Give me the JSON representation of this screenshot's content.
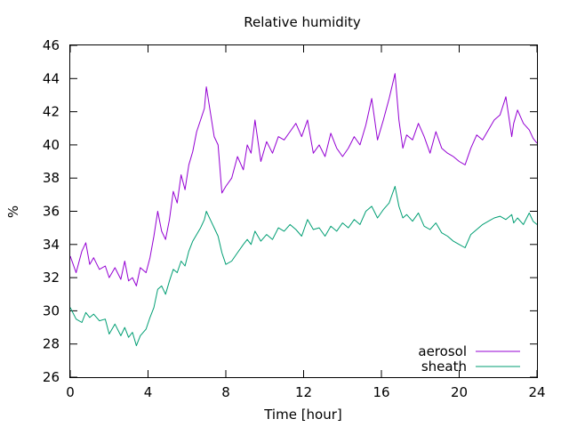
{
  "chart_data": {
    "type": "line",
    "title": "Relative humidity",
    "xlabel": "Time [hour]",
    "ylabel": "%",
    "xlim": [
      0,
      24
    ],
    "ylim": [
      26,
      46
    ],
    "xticks": [
      0,
      4,
      8,
      12,
      16,
      20,
      24
    ],
    "yticks": [
      26,
      28,
      30,
      32,
      34,
      36,
      38,
      40,
      42,
      44,
      46
    ],
    "grid": false,
    "legend_position": "bottom-right",
    "series": [
      {
        "name": "aerosol",
        "color": "#9400d3",
        "x": [
          0,
          0.3,
          0.6,
          0.8,
          1.0,
          1.2,
          1.5,
          1.8,
          2.0,
          2.3,
          2.6,
          2.8,
          3.0,
          3.2,
          3.4,
          3.6,
          3.9,
          4.1,
          4.3,
          4.5,
          4.7,
          4.9,
          5.1,
          5.3,
          5.5,
          5.7,
          5.9,
          6.1,
          6.3,
          6.5,
          6.7,
          6.9,
          7.0,
          7.2,
          7.4,
          7.6,
          7.8,
          8.0,
          8.3,
          8.6,
          8.9,
          9.1,
          9.3,
          9.5,
          9.8,
          10.1,
          10.4,
          10.7,
          11.0,
          11.3,
          11.6,
          11.9,
          12.2,
          12.5,
          12.8,
          13.1,
          13.4,
          13.7,
          14.0,
          14.3,
          14.6,
          14.9,
          15.2,
          15.5,
          15.8,
          16.1,
          16.4,
          16.7,
          16.9,
          17.1,
          17.3,
          17.6,
          17.9,
          18.2,
          18.5,
          18.8,
          19.1,
          19.4,
          19.7,
          20.0,
          20.3,
          20.6,
          20.9,
          21.2,
          21.5,
          21.8,
          22.1,
          22.4,
          22.7,
          22.8,
          23.0,
          23.3,
          23.6,
          23.8,
          24.0
        ],
        "values": [
          33.3,
          32.3,
          33.6,
          34.1,
          32.8,
          33.2,
          32.5,
          32.7,
          32.0,
          32.6,
          31.9,
          33.0,
          31.8,
          32.0,
          31.5,
          32.6,
          32.3,
          33.2,
          34.5,
          36.0,
          34.8,
          34.3,
          35.5,
          37.2,
          36.5,
          38.2,
          37.3,
          38.8,
          39.6,
          40.8,
          41.5,
          42.2,
          43.5,
          42.0,
          40.5,
          40.0,
          37.1,
          37.5,
          38.0,
          39.3,
          38.5,
          40.0,
          39.5,
          41.5,
          39.0,
          40.2,
          39.5,
          40.5,
          40.3,
          40.8,
          41.3,
          40.5,
          41.5,
          39.5,
          40.0,
          39.3,
          40.7,
          39.8,
          39.3,
          39.8,
          40.5,
          40.0,
          41.2,
          42.8,
          40.3,
          41.5,
          42.8,
          44.3,
          41.5,
          39.8,
          40.6,
          40.3,
          41.3,
          40.5,
          39.5,
          40.8,
          39.8,
          39.5,
          39.3,
          39.0,
          38.8,
          39.8,
          40.6,
          40.3,
          40.9,
          41.5,
          41.8,
          42.9,
          40.5,
          41.3,
          42.1,
          41.3,
          40.9,
          40.4,
          40.1
        ]
      },
      {
        "name": "sheath",
        "color": "#009e73",
        "x": [
          0,
          0.3,
          0.6,
          0.8,
          1.0,
          1.2,
          1.5,
          1.8,
          2.0,
          2.3,
          2.6,
          2.8,
          3.0,
          3.2,
          3.4,
          3.6,
          3.9,
          4.1,
          4.3,
          4.5,
          4.7,
          4.9,
          5.1,
          5.3,
          5.5,
          5.7,
          5.9,
          6.1,
          6.3,
          6.5,
          6.7,
          6.9,
          7.0,
          7.2,
          7.4,
          7.6,
          7.8,
          8.0,
          8.3,
          8.6,
          8.9,
          9.1,
          9.3,
          9.5,
          9.8,
          10.1,
          10.4,
          10.7,
          11.0,
          11.3,
          11.6,
          11.9,
          12.2,
          12.5,
          12.8,
          13.1,
          13.4,
          13.7,
          14.0,
          14.3,
          14.6,
          14.9,
          15.2,
          15.5,
          15.8,
          16.1,
          16.4,
          16.7,
          16.9,
          17.1,
          17.3,
          17.6,
          17.9,
          18.2,
          18.5,
          18.8,
          19.1,
          19.4,
          19.7,
          20.0,
          20.3,
          20.6,
          20.9,
          21.2,
          21.5,
          21.8,
          22.1,
          22.4,
          22.7,
          22.8,
          23.0,
          23.3,
          23.6,
          23.8,
          24.0
        ],
        "values": [
          30.2,
          29.5,
          29.3,
          29.9,
          29.6,
          29.8,
          29.4,
          29.5,
          28.6,
          29.2,
          28.5,
          29.0,
          28.4,
          28.7,
          27.9,
          28.5,
          28.9,
          29.6,
          30.2,
          31.3,
          31.5,
          31.0,
          31.8,
          32.5,
          32.3,
          33.0,
          32.7,
          33.6,
          34.2,
          34.6,
          35.0,
          35.5,
          36.0,
          35.5,
          35.0,
          34.5,
          33.5,
          32.8,
          33.0,
          33.5,
          34.0,
          34.3,
          34.0,
          34.8,
          34.2,
          34.6,
          34.3,
          35.0,
          34.8,
          35.2,
          34.9,
          34.5,
          35.5,
          34.9,
          35.0,
          34.5,
          35.1,
          34.8,
          35.3,
          35.0,
          35.5,
          35.2,
          36.0,
          36.3,
          35.6,
          36.1,
          36.5,
          37.5,
          36.3,
          35.6,
          35.8,
          35.4,
          35.9,
          35.1,
          34.9,
          35.3,
          34.7,
          34.5,
          34.2,
          34.0,
          33.8,
          34.6,
          34.9,
          35.2,
          35.4,
          35.6,
          35.7,
          35.5,
          35.8,
          35.3,
          35.6,
          35.2,
          35.9,
          35.4,
          35.2
        ]
      }
    ]
  }
}
